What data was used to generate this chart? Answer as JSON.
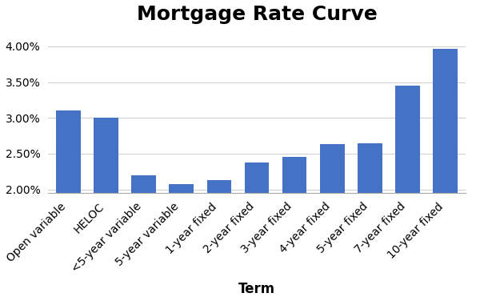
{
  "title": "Mortgage Rate Curve",
  "xlabel": "Term",
  "ylabel": "",
  "categories": [
    "Open variable",
    "HELOC",
    "<5-year variable",
    "5-year variable",
    "1-year fixed",
    "2-year fixed",
    "3-year fixed",
    "4-year fixed",
    "5-year fixed",
    "7-year fixed",
    "10-year fixed"
  ],
  "values": [
    0.031,
    0.03,
    0.022,
    0.0208,
    0.0213,
    0.0238,
    0.0245,
    0.0263,
    0.0265,
    0.0345,
    0.0397
  ],
  "bar_color": "#4472c4",
  "ylim_min": 0.0195,
  "ylim_max": 0.0415,
  "yticks": [
    0.02,
    0.025,
    0.03,
    0.035,
    0.04
  ],
  "background_color": "#ffffff",
  "title_fontsize": 18,
  "axis_label_fontsize": 12,
  "tick_fontsize": 10,
  "grid_color": "#d0d0d0"
}
